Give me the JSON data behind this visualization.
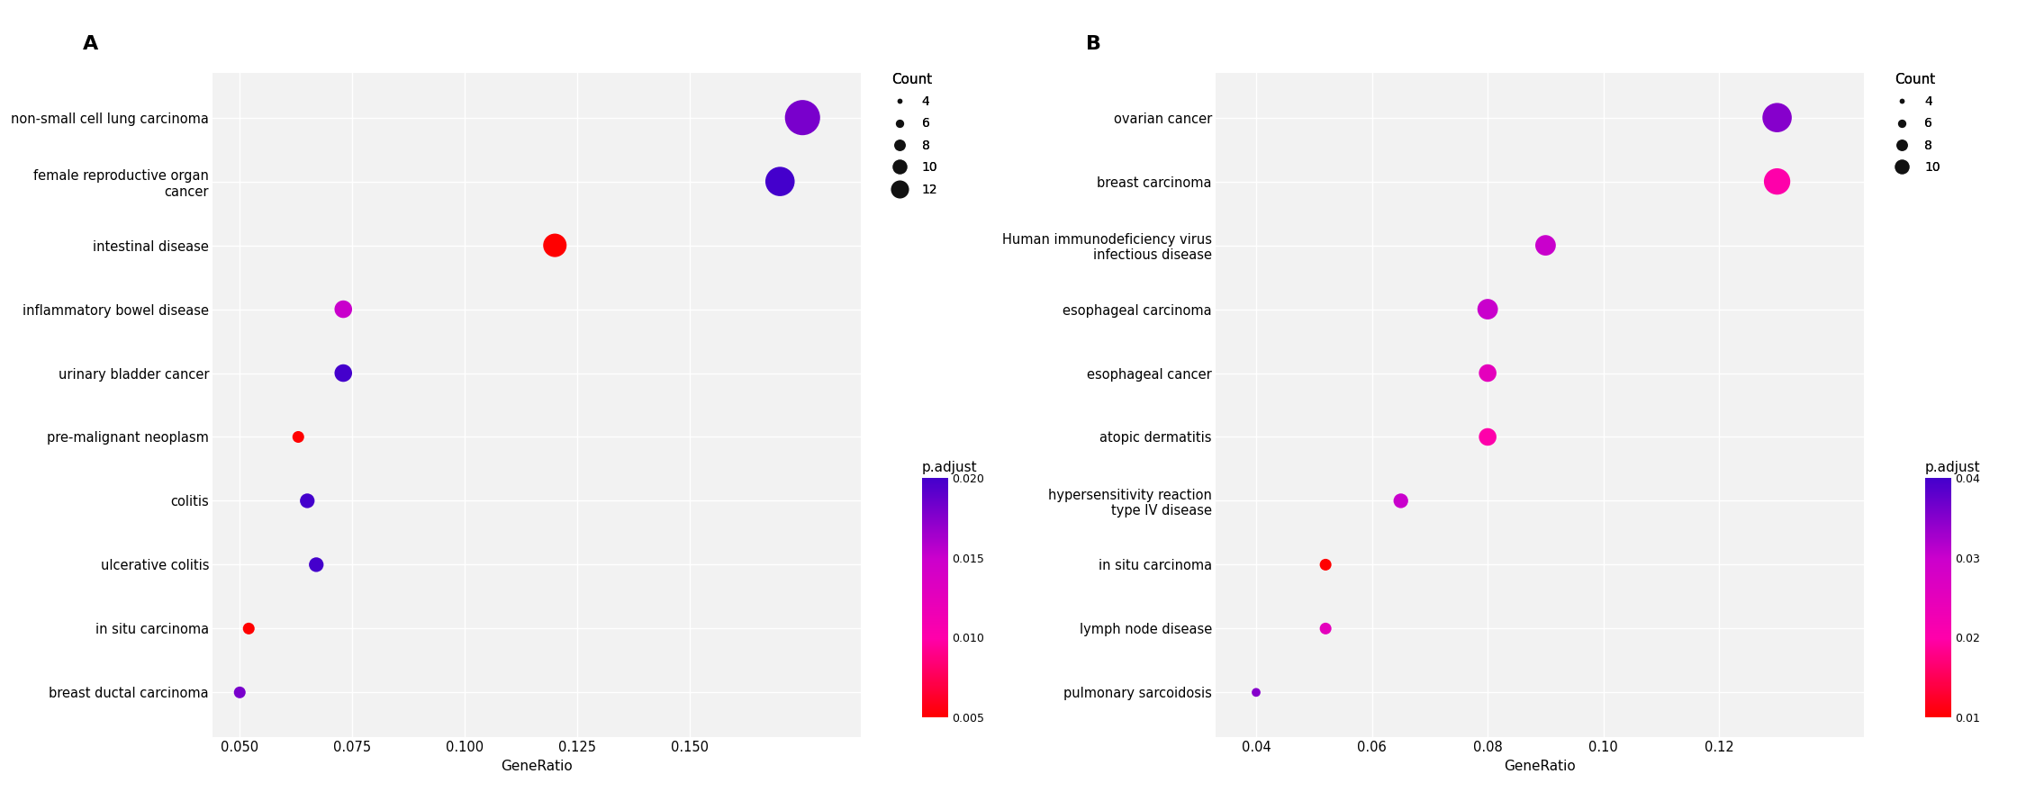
{
  "panel_A": {
    "label": "A",
    "pathways": [
      "non-small cell lung carcinoma",
      "female reproductive organ\ncancer",
      "intestinal disease",
      "inflammatory bowel disease",
      "urinary bladder cancer",
      "pre-malignant neoplasm",
      "colitis",
      "ulcerative colitis",
      "in situ carcinoma",
      "breast ductal carcinoma"
    ],
    "gene_ratio": [
      0.175,
      0.17,
      0.12,
      0.073,
      0.073,
      0.063,
      0.065,
      0.067,
      0.052,
      0.05
    ],
    "count": [
      12,
      10,
      8,
      6,
      6,
      4,
      5,
      5,
      4,
      4
    ],
    "p_adjust": [
      0.018,
      0.02,
      0.005,
      0.015,
      0.02,
      0.005,
      0.02,
      0.02,
      0.005,
      0.018
    ],
    "xlim": [
      0.044,
      0.188
    ],
    "xticks": [
      0.05,
      0.075,
      0.1,
      0.125,
      0.15
    ],
    "xtick_labels": [
      "0.050",
      "0.075",
      "0.100",
      "0.125",
      "0.150"
    ],
    "xlabel": "GeneRatio",
    "count_legend_values": [
      4,
      6,
      8,
      10,
      12
    ],
    "padjust_min": 0.005,
    "padjust_max": 0.02,
    "padjust_ticks": [
      0.005,
      0.01,
      0.015,
      0.02
    ],
    "cmap_colors": [
      [
        0.0,
        "#ff0000"
      ],
      [
        0.33,
        "#ff00aa"
      ],
      [
        0.66,
        "#cc00cc"
      ],
      [
        1.0,
        "#4400cc"
      ]
    ]
  },
  "panel_B": {
    "label": "B",
    "pathways": [
      "ovarian cancer",
      "breast carcinoma",
      "Human immunodeficiency virus\ninfectious disease",
      "esophageal carcinoma",
      "esophageal cancer",
      "atopic dermatitis",
      "hypersensitivity reaction\ntype IV disease",
      "in situ carcinoma",
      "lymph node disease",
      "pulmonary sarcoidosis"
    ],
    "gene_ratio": [
      0.13,
      0.13,
      0.09,
      0.08,
      0.08,
      0.08,
      0.065,
      0.052,
      0.052,
      0.04
    ],
    "count": [
      10,
      9,
      7,
      7,
      6,
      6,
      5,
      4,
      4,
      3
    ],
    "p_adjust": [
      0.035,
      0.02,
      0.03,
      0.03,
      0.025,
      0.02,
      0.03,
      0.01,
      0.025,
      0.035
    ],
    "xlim": [
      0.033,
      0.145
    ],
    "xticks": [
      0.04,
      0.06,
      0.08,
      0.1,
      0.12
    ],
    "xtick_labels": [
      "0.04",
      "0.06",
      "0.08",
      "0.10",
      "0.12"
    ],
    "xlabel": "GeneRatio",
    "count_legend_values": [
      4,
      6,
      8,
      10
    ],
    "padjust_min": 0.01,
    "padjust_max": 0.04,
    "padjust_ticks": [
      0.01,
      0.02,
      0.03,
      0.04
    ],
    "cmap_colors": [
      [
        0.0,
        "#ff0000"
      ],
      [
        0.33,
        "#ff00aa"
      ],
      [
        0.66,
        "#cc00cc"
      ],
      [
        1.0,
        "#4400cc"
      ]
    ]
  },
  "bg_color": "#f2f2f2",
  "grid_color": "#ffffff",
  "font_size_label": 10.5,
  "font_size_title": 16,
  "font_size_axis": 11,
  "font_size_legend": 10
}
